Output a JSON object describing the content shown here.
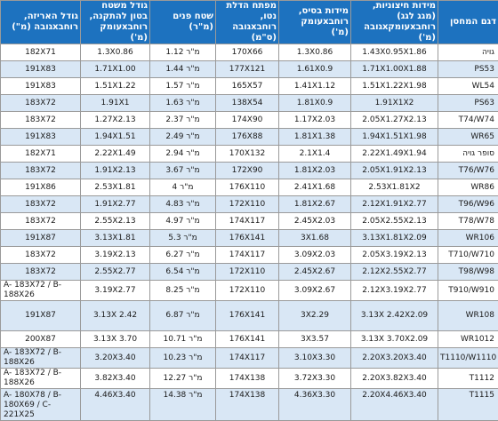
{
  "colors": {
    "header_bg": "#1d72bf",
    "header_text": "#ffffff",
    "row_alt": "#d9e7f5",
    "grid": "#9a9a9a"
  },
  "headers": [
    "גודל האריזה, רוחבxגובה (מ\")",
    "גודל משטח בטון להתקנה, רוחבxעומק (מ')",
    "שטח פנים (מ\"ר)",
    "מפתח הדלת נטו, רוחבxגובה (ס\"מ)",
    "מידות בסיס, רוחבxעומק (מ')",
    "מידות חיצוניות, (מגג לגג) רוחבxעומקxגובה (מ')",
    "דגם המחסן"
  ],
  "rows": [
    [
      "182X71",
      "1.3X0.86",
      "מ\"ר 1.12",
      "170X66",
      "1.3X0.86",
      "1.43X0.95X1.86",
      "גויה"
    ],
    [
      "191X83",
      "1.71X1.00",
      "מ\"ר 1.44",
      "177X121",
      "1.61X0.9",
      "1.71X1.00X1.88",
      "PS53"
    ],
    [
      "191X83",
      "1.51X1.22",
      "מ\"ר 1.57",
      "165X57",
      "1.41X1.12",
      "1.51X1.22X1.98",
      "WL54"
    ],
    [
      "183X72",
      "1.91X1",
      "מ\"ר 1.63",
      "138X54",
      "1.81X0.9",
      "1.91X1X2",
      "PS63"
    ],
    [
      "183X72",
      "1.27X2.13",
      "מ\"ר 2.37",
      "174X90",
      "1.17X2.03",
      "2.05X1.27X2.13",
      "T74/W74"
    ],
    [
      "191X83",
      "1.94X1.51",
      "מ\"ר 2.49",
      "176X88",
      "1.81X1.38",
      "1.94X1.51X1.98",
      "WR65"
    ],
    [
      "182X71",
      "2.22X1.49",
      "מ\"ר 2.94",
      "170X132",
      "2.1X1.4",
      "2.22X1.49X1.94",
      "סופר גויה"
    ],
    [
      "183X72",
      "1.91X2.13",
      "מ\"ר 3.67",
      "172X90",
      "1.81X2.03",
      "2.05X1.91X2.13",
      "T76/W76"
    ],
    [
      "191X86",
      "2.53X1.81",
      "מ\"ר 4",
      "176X110",
      "2.41X1.68",
      "2.53X1.81X2",
      "WR86"
    ],
    [
      "183X72",
      "1.91X2.77",
      "מ\"ר 4.83",
      "172X110",
      "1.81X2.67",
      "2.12X1.91X2.77",
      "T96/W96"
    ],
    [
      "183X72",
      "2.55X2.13",
      "מ\"ר 4.97",
      "174X117",
      "2.45X2.03",
      "2.05X2.55X2.13",
      "T78/W78"
    ],
    [
      "191X87",
      "3.13X1.81",
      "מ\"ר 5.3",
      "176X141",
      "3X1.68",
      "3.13X1.81X2.09",
      "WR106"
    ],
    [
      "183X72",
      "3.19X2.13",
      "מ\"ר 6.27",
      "174X117",
      "3.09X2.03",
      "2.05X3.19X2.13",
      "T710/W710"
    ],
    [
      "183X72",
      "2.55X2.77",
      "מ\"ר 6.54",
      "172X110",
      "2.45X2.67",
      "2.12X2.55X2.77",
      "T98/W98"
    ],
    [
      "A- 183X72 / B-188X26",
      "3.19X2.77",
      "מ\"ר 8.25",
      "172X110",
      "3.09X2.67",
      "2.12X3.19X2.77",
      "T910/W910"
    ],
    [
      "191X87",
      "3.13X 2.42",
      "מ\"ר 6.87",
      "176X141",
      "3X2.29",
      "3.13X 2.42X2.09",
      "WR108"
    ],
    [
      "200X87",
      "3.13X 3.70",
      "מ\"ר 10.71",
      "176X141",
      "3X3.57",
      "3.13X 3.70X2.09",
      "WR1012"
    ],
    [
      "A- 183X72 / B-188X26",
      "3.20X3.40",
      "מ\"ר 10.23",
      "174X117",
      "3.10X3.30",
      "2.20X3.20X3.40",
      "T1110/W1110"
    ],
    [
      "A- 183X72 / B-188X26",
      "3.82X3.40",
      "מ\"ר 12.27",
      "174X138",
      "3.72X3.30",
      "2.20X3.82X3.40",
      "T1112"
    ],
    [
      "A- 180X78 / B-180X69 / C- 221X25",
      "4.46X3.40",
      "מ\"ר 14.38",
      "174X138",
      "4.36X3.30",
      "2.20X4.46X3.40",
      "T1115"
    ]
  ]
}
